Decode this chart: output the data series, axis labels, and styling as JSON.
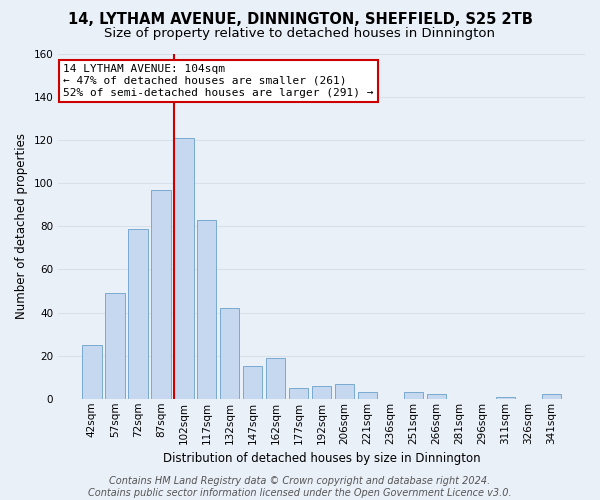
{
  "title": "14, LYTHAM AVENUE, DINNINGTON, SHEFFIELD, S25 2TB",
  "subtitle": "Size of property relative to detached houses in Dinnington",
  "xlabel": "Distribution of detached houses by size in Dinnington",
  "ylabel": "Number of detached properties",
  "categories": [
    "42sqm",
    "57sqm",
    "72sqm",
    "87sqm",
    "102sqm",
    "117sqm",
    "132sqm",
    "147sqm",
    "162sqm",
    "177sqm",
    "192sqm",
    "206sqm",
    "221sqm",
    "236sqm",
    "251sqm",
    "266sqm",
    "281sqm",
    "296sqm",
    "311sqm",
    "326sqm",
    "341sqm"
  ],
  "values": [
    25,
    49,
    79,
    97,
    121,
    83,
    42,
    15,
    19,
    5,
    6,
    7,
    3,
    0,
    3,
    2,
    0,
    0,
    1,
    0,
    2
  ],
  "bar_color": "#c5d8f0",
  "bar_edge_color": "#7aaad0",
  "highlight_index": 4,
  "highlight_color": "#cc0000",
  "ylim": [
    0,
    160
  ],
  "yticks": [
    0,
    20,
    40,
    60,
    80,
    100,
    120,
    140,
    160
  ],
  "annotation_line1": "14 LYTHAM AVENUE: 104sqm",
  "annotation_line2": "← 47% of detached houses are smaller (261)",
  "annotation_line3": "52% of semi-detached houses are larger (291) →",
  "annotation_box_color": "#ffffff",
  "annotation_box_edge": "#cc0000",
  "footer_line1": "Contains HM Land Registry data © Crown copyright and database right 2024.",
  "footer_line2": "Contains public sector information licensed under the Open Government Licence v3.0.",
  "background_color": "#eaf0f8",
  "grid_color": "#d8e0ec",
  "title_fontsize": 10.5,
  "subtitle_fontsize": 9.5,
  "axis_label_fontsize": 8.5,
  "tick_fontsize": 7.5,
  "footer_fontsize": 7,
  "annotation_fontsize": 8
}
